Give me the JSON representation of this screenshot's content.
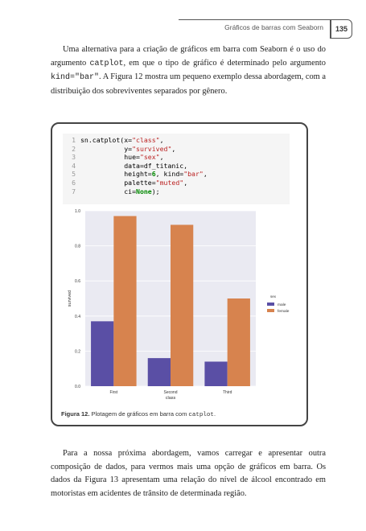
{
  "header": {
    "title": "Gráficos de barras com Seaborn",
    "page_number": "135"
  },
  "intro": {
    "text_a": "Uma alternativa para a criação de gráficos em barra com Seaborn é o uso do argumento ",
    "code_a": "catplot",
    "text_b": ", em que o tipo de gráfico é determinado pelo argumento ",
    "code_b": "kind=\"bar\"",
    "text_c": ". A Figura 12 mostra um pequeno exemplo dessa abordagem, com a distribuição dos sobreviventes separados por gênero."
  },
  "code_lines": [
    {
      "num": "1",
      "text": "sn.catplot(x=\"class\","
    },
    {
      "num": "2",
      "text": "           y=\"survived\","
    },
    {
      "num": "3",
      "text": "           hue=\"sex\","
    },
    {
      "num": "4",
      "text": "           data=df_titanic,"
    },
    {
      "num": "5",
      "text": "           height=6, kind=\"bar\","
    },
    {
      "num": "6",
      "text": "           palette=\"muted\","
    },
    {
      "num": "7",
      "text": "           ci=None);"
    }
  ],
  "caption": {
    "label": "Figura 12.",
    "text": " Plotagem de gráficos em barra com ",
    "code": "catplot",
    "end": "."
  },
  "outro": {
    "text": "Para a nossa próxima abordagem, vamos carregar e apresentar outra composição de dados, para vermos mais uma opção de gráficos em barra. Os dados da Figura 13 apresentam uma relação do nível de álcool encontrado em motoristas em acidentes de trânsito de determinada região."
  },
  "chart_data": {
    "type": "bar",
    "categories": [
      "First",
      "Second",
      "Third"
    ],
    "series": [
      {
        "name": "male",
        "values": [
          0.37,
          0.16,
          0.14
        ],
        "color": "#5a4fa5"
      },
      {
        "name": "female",
        "values": [
          0.97,
          0.92,
          0.5
        ],
        "color": "#d7834e"
      }
    ],
    "xlabel": "class",
    "ylabel": "survived",
    "ylim": [
      0,
      1.0
    ],
    "yticks": [
      "0.0",
      "0.2",
      "0.4",
      "0.6",
      "0.8",
      "1.0"
    ],
    "ytick_values": [
      0,
      0.2,
      0.4,
      0.6,
      0.8,
      1.0
    ],
    "legend_title": "sex",
    "legend_placement": "right",
    "background": "#eaeaf2",
    "grid": true
  }
}
